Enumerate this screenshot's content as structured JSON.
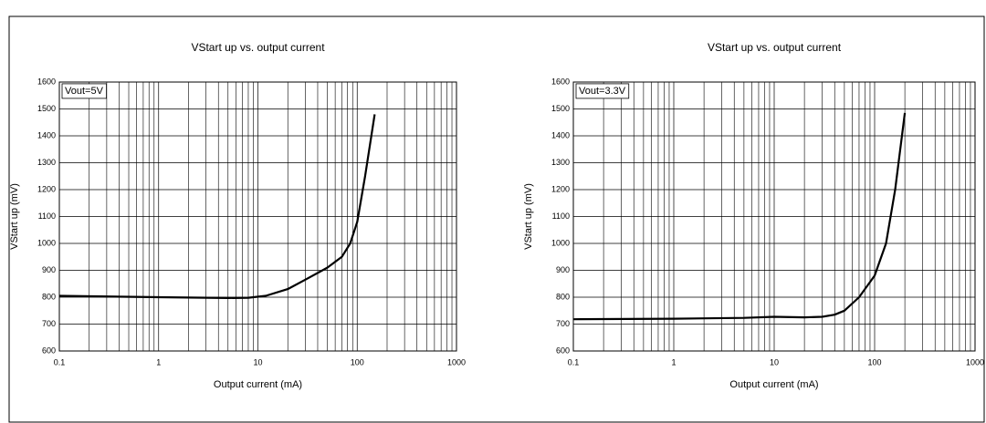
{
  "chart_data": [
    {
      "type": "line",
      "title": "VStart up vs. output current",
      "x_label": "Output current (mA)",
      "y_label": "VStart up (mV)",
      "annotation": "Vout=5V",
      "x": [
        0.1,
        1,
        5,
        8,
        12,
        20,
        30,
        50,
        70,
        85,
        100,
        120,
        150
      ],
      "values": [
        805,
        800,
        797,
        798,
        805,
        830,
        865,
        910,
        950,
        1000,
        1080,
        1250,
        1480
      ],
      "color": "#000000",
      "x_scale": "log",
      "xlim": [
        0.1,
        1000
      ],
      "xticks": [
        0.1,
        1,
        10,
        100,
        1000
      ],
      "ylim": [
        600,
        1600
      ],
      "yticks": [
        600,
        700,
        800,
        900,
        1000,
        1100,
        1200,
        1300,
        1400,
        1500,
        1600
      ],
      "grid": true,
      "minor_grid": true
    },
    {
      "type": "line",
      "title": "VStart up vs. output current",
      "x_label": "Output current (mA)",
      "y_label": "VStart up (mV)",
      "annotation": "Vout=3.3V",
      "x": [
        0.1,
        1,
        5,
        10,
        20,
        30,
        40,
        50,
        70,
        100,
        130,
        160,
        200
      ],
      "values": [
        718,
        720,
        723,
        727,
        725,
        727,
        735,
        750,
        800,
        880,
        1000,
        1200,
        1485
      ],
      "color": "#000000",
      "x_scale": "log",
      "xlim": [
        0.1,
        1000
      ],
      "xticks": [
        0.1,
        1,
        10,
        100,
        1000
      ],
      "ylim": [
        600,
        1600
      ],
      "yticks": [
        600,
        700,
        800,
        900,
        1000,
        1100,
        1200,
        1300,
        1400,
        1500,
        1600
      ],
      "grid": true,
      "minor_grid": true
    }
  ]
}
